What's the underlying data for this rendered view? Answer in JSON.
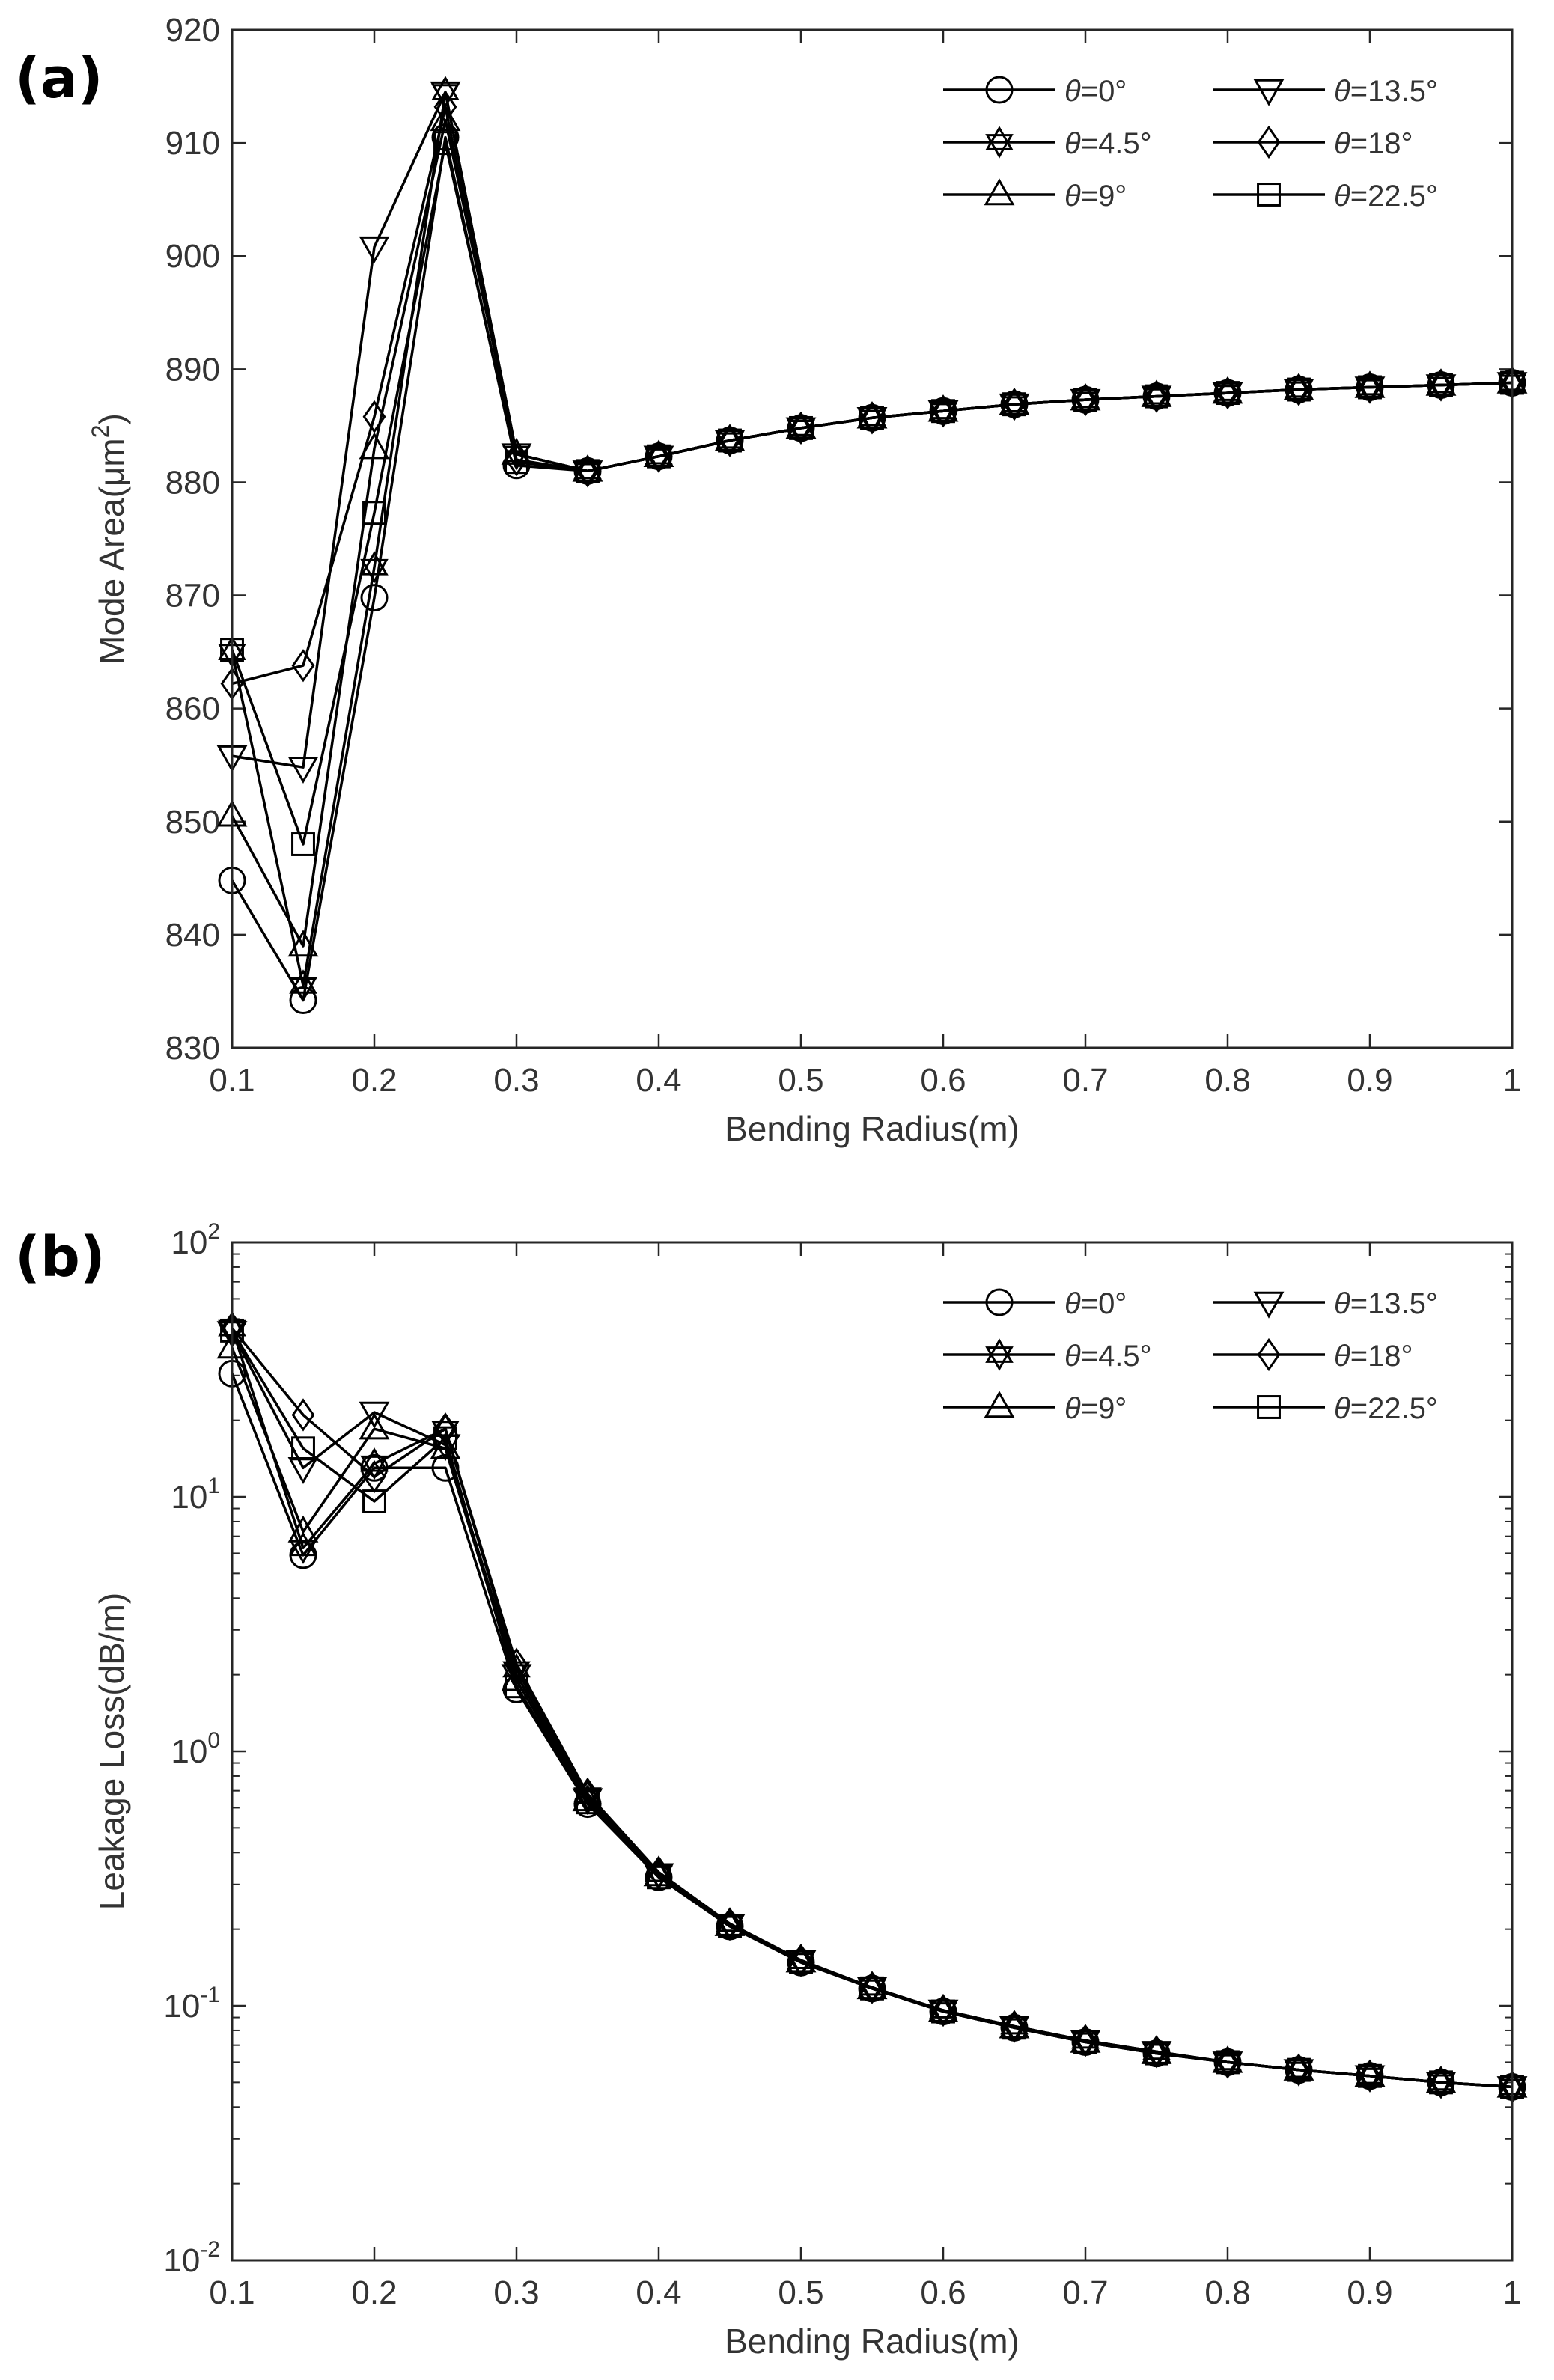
{
  "chart_data": [
    {
      "panel_label": "(a)",
      "type": "line",
      "yscale": "linear",
      "xlabel": "Bending Radius(m)",
      "ylabel": "Mode Area(μm",
      "ylabel_sup": "2",
      "ylabel_close": ")",
      "xlim": [
        0.1,
        1
      ],
      "ylim": [
        830,
        920
      ],
      "xticks": [
        0.1,
        0.2,
        0.3,
        0.4,
        0.5,
        0.6,
        0.7,
        0.8,
        0.9,
        1
      ],
      "xtick_labels": [
        "0.1",
        "0.2",
        "0.3",
        "0.4",
        "0.5",
        "0.6",
        "0.7",
        "0.8",
        "0.9",
        "1"
      ],
      "yticks": [
        830,
        840,
        850,
        860,
        870,
        880,
        890,
        900,
        910,
        920
      ],
      "ytick_labels": [
        "830",
        "840",
        "850",
        "860",
        "870",
        "880",
        "890",
        "900",
        "910",
        "920"
      ],
      "legend_position": "top-right",
      "x": [
        0.1,
        0.15,
        0.2,
        0.25,
        0.3,
        0.35,
        0.4,
        0.45,
        0.5,
        0.55,
        0.6,
        0.65,
        0.7,
        0.75,
        0.8,
        0.85,
        0.9,
        0.95,
        1
      ],
      "series": [
        {
          "name": "θ=0°",
          "legend_theta": "θ",
          "legend_rest": "=0°",
          "marker": "circle",
          "values": [
            844.8,
            834.2,
            869.8,
            910.5,
            881.5,
            881.0,
            882.3,
            883.7,
            884.8,
            885.7,
            886.3,
            886.9,
            887.3,
            887.6,
            887.9,
            888.2,
            888.4,
            888.6,
            888.8
          ]
        },
        {
          "name": "θ=4.5°",
          "legend_theta": "θ",
          "legend_rest": "=4.5°",
          "marker": "hexagram",
          "values": [
            865.0,
            835.5,
            872.5,
            914.5,
            882.5,
            881.0,
            882.3,
            883.7,
            884.8,
            885.7,
            886.3,
            886.9,
            887.3,
            887.6,
            887.9,
            888.2,
            888.4,
            888.6,
            888.8
          ]
        },
        {
          "name": "θ=9°",
          "legend_theta": "θ",
          "legend_rest": "=9°",
          "marker": "triangle-up",
          "values": [
            850.5,
            839.0,
            883.0,
            912.0,
            882.5,
            881.0,
            882.3,
            883.7,
            884.8,
            885.7,
            886.3,
            886.9,
            887.3,
            887.6,
            887.9,
            888.2,
            888.4,
            888.6,
            888.8
          ]
        },
        {
          "name": "θ=13.5°",
          "legend_theta": "θ",
          "legend_rest": "=13.5°",
          "marker": "triangle-down",
          "values": [
            855.8,
            854.8,
            900.8,
            914.5,
            882.5,
            881.0,
            882.3,
            883.7,
            884.8,
            885.7,
            886.3,
            886.9,
            887.3,
            887.6,
            887.9,
            888.2,
            888.4,
            888.6,
            888.8
          ]
        },
        {
          "name": "θ=18°",
          "legend_theta": "θ",
          "legend_rest": "=18°",
          "marker": "diamond",
          "values": [
            862.2,
            863.8,
            885.8,
            913.2,
            882.0,
            881.0,
            882.3,
            883.7,
            884.8,
            885.7,
            886.3,
            886.9,
            887.3,
            887.6,
            887.9,
            888.2,
            888.4,
            888.6,
            888.8
          ]
        },
        {
          "name": "θ=22.5°",
          "legend_theta": "θ",
          "legend_rest": "=22.5°",
          "marker": "square",
          "values": [
            865.2,
            848.0,
            877.3,
            910.0,
            881.8,
            881.0,
            882.3,
            883.7,
            884.8,
            885.7,
            886.3,
            886.9,
            887.3,
            887.6,
            887.9,
            888.2,
            888.4,
            888.6,
            888.8
          ]
        }
      ]
    },
    {
      "panel_label": "(b)",
      "type": "line",
      "yscale": "log",
      "xlabel": "Bending Radius(m)",
      "ylabel": "Leakage Loss(dB/m)",
      "xlim": [
        0.1,
        1
      ],
      "ylim": [
        0.01,
        100
      ],
      "xticks": [
        0.1,
        0.2,
        0.3,
        0.4,
        0.5,
        0.6,
        0.7,
        0.8,
        0.9,
        1
      ],
      "xtick_labels": [
        "0.1",
        "0.2",
        "0.3",
        "0.4",
        "0.5",
        "0.6",
        "0.7",
        "0.8",
        "0.9",
        "1"
      ],
      "yticks": [
        0.01,
        0.1,
        1,
        10,
        100
      ],
      "ytick_labels": [
        {
          "base": "10",
          "exp": "-2"
        },
        {
          "base": "10",
          "exp": "-1"
        },
        {
          "base": "10",
          "exp": "0"
        },
        {
          "base": "10",
          "exp": "1"
        },
        {
          "base": "10",
          "exp": "2"
        }
      ],
      "legend_position": "top-right",
      "x": [
        0.1,
        0.15,
        0.2,
        0.25,
        0.3,
        0.35,
        0.4,
        0.45,
        0.5,
        0.55,
        0.6,
        0.65,
        0.7,
        0.75,
        0.8,
        0.85,
        0.9,
        0.95,
        1
      ],
      "series": [
        {
          "name": "θ=0°",
          "legend_theta": "θ",
          "legend_rest": "=0°",
          "marker": "circle",
          "values": [
            30.5,
            5.9,
            13.0,
            13.0,
            1.75,
            0.62,
            0.32,
            0.205,
            0.148,
            0.117,
            0.095,
            0.082,
            0.072,
            0.065,
            0.06,
            0.056,
            0.053,
            0.05,
            0.048
          ]
        },
        {
          "name": "θ=4.5°",
          "legend_theta": "θ",
          "legend_rest": "=4.5°",
          "marker": "hexagram",
          "values": [
            46.0,
            6.3,
            13.5,
            18.5,
            2.1,
            0.67,
            0.33,
            0.21,
            0.15,
            0.118,
            0.096,
            0.083,
            0.073,
            0.066,
            0.06,
            0.056,
            0.053,
            0.05,
            0.048
          ]
        },
        {
          "name": "θ=9°",
          "legend_theta": "θ",
          "legend_rest": "=9°",
          "marker": "triangle-up",
          "values": [
            38.5,
            7.3,
            18.5,
            15.5,
            1.9,
            0.64,
            0.325,
            0.207,
            0.149,
            0.117,
            0.095,
            0.082,
            0.072,
            0.065,
            0.06,
            0.056,
            0.053,
            0.05,
            0.048
          ]
        },
        {
          "name": "θ=13.5°",
          "legend_theta": "θ",
          "legend_rest": "=13.5°",
          "marker": "triangle-down",
          "values": [
            44.5,
            13.0,
            21.5,
            16.0,
            2.0,
            0.65,
            0.33,
            0.208,
            0.15,
            0.118,
            0.096,
            0.083,
            0.073,
            0.066,
            0.06,
            0.056,
            0.053,
            0.05,
            0.048
          ]
        },
        {
          "name": "θ=18°",
          "legend_theta": "θ",
          "legend_rest": "=18°",
          "marker": "diamond",
          "values": [
            46.0,
            21.0,
            12.0,
            18.5,
            2.2,
            0.68,
            0.335,
            0.21,
            0.151,
            0.118,
            0.096,
            0.083,
            0.073,
            0.066,
            0.06,
            0.056,
            0.053,
            0.05,
            0.048
          ]
        },
        {
          "name": "θ=22.5°",
          "legend_theta": "θ",
          "legend_rest": "=22.5°",
          "marker": "square",
          "values": [
            45.0,
            15.5,
            9.6,
            17.0,
            1.8,
            0.63,
            0.32,
            0.206,
            0.149,
            0.117,
            0.095,
            0.082,
            0.072,
            0.065,
            0.06,
            0.056,
            0.053,
            0.05,
            0.048
          ]
        }
      ]
    }
  ]
}
